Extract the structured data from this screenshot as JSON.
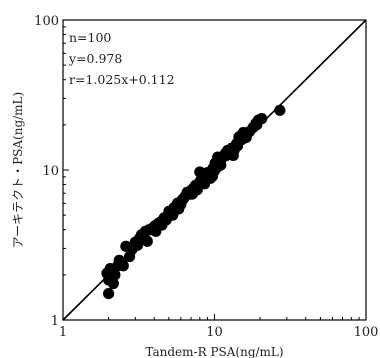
{
  "chart_data": {
    "type": "scatter",
    "xlabel": "Tandem-R PSA(ng/mL)",
    "ylabel": "アーキテクト・PSA(ng/mL)",
    "x_scale": "log",
    "y_scale": "log",
    "xlim": [
      1,
      100
    ],
    "ylim": [
      1,
      100
    ],
    "x_ticks": [
      "1",
      "10",
      "100"
    ],
    "y_ticks": [
      "1",
      "10",
      "100"
    ],
    "annotations": [
      "n=100",
      "y=0.978",
      "r=1.025x+0.112"
    ],
    "reference_line": {
      "from": [
        1,
        1
      ],
      "to": [
        100,
        100
      ]
    },
    "grid": false,
    "colors": {
      "points": "#000000",
      "line": "#000000",
      "axes": "#000000"
    },
    "points": [
      [
        1.95,
        2.05
      ],
      [
        2.0,
        1.85
      ],
      [
        2.05,
        2.2
      ],
      [
        2.1,
        2.0
      ],
      [
        2.0,
        1.5
      ],
      [
        2.15,
        1.75
      ],
      [
        2.1,
        2.15
      ],
      [
        2.3,
        2.3
      ],
      [
        2.35,
        2.5
      ],
      [
        2.4,
        2.45
      ],
      [
        2.6,
        3.1
      ],
      [
        2.75,
        2.65
      ],
      [
        2.85,
        2.95
      ],
      [
        3.0,
        3.3
      ],
      [
        3.1,
        3.15
      ],
      [
        3.3,
        3.7
      ],
      [
        3.4,
        3.45
      ],
      [
        3.5,
        3.9
      ],
      [
        3.6,
        3.35
      ],
      [
        3.7,
        4.0
      ],
      [
        3.9,
        4.1
      ],
      [
        4.1,
        3.9
      ],
      [
        4.25,
        4.4
      ],
      [
        4.5,
        4.3
      ],
      [
        4.65,
        4.8
      ],
      [
        4.8,
        4.65
      ],
      [
        5.0,
        5.3
      ],
      [
        5.15,
        5.0
      ],
      [
        5.4,
        5.6
      ],
      [
        5.6,
        5.45
      ],
      [
        5.8,
        5.5
      ],
      [
        6.0,
        5.9
      ],
      [
        6.2,
        6.4
      ],
      [
        6.35,
        6.6
      ],
      [
        6.5,
        6.8
      ],
      [
        6.6,
        7.1
      ],
      [
        6.8,
        6.9
      ],
      [
        7.0,
        7.3
      ],
      [
        7.1,
        6.9
      ],
      [
        7.3,
        7.6
      ],
      [
        7.5,
        7.9
      ],
      [
        7.7,
        7.4
      ],
      [
        7.9,
        8.2
      ],
      [
        8.1,
        8.5
      ],
      [
        8.3,
        8.7
      ],
      [
        8.5,
        8.3
      ],
      [
        8.7,
        9.0
      ],
      [
        8.9,
        8.8
      ],
      [
        9.0,
        9.6
      ],
      [
        9.2,
        9.2
      ],
      [
        9.4,
        8.8
      ],
      [
        9.6,
        9.9
      ],
      [
        9.8,
        10.3
      ],
      [
        10.0,
        9.9
      ],
      [
        10.2,
        10.7
      ],
      [
        10.4,
        10.4
      ],
      [
        10.6,
        11.2
      ],
      [
        10.9,
        11.5
      ],
      [
        11.2,
        12.0
      ],
      [
        11.5,
        12.4
      ],
      [
        11.8,
        12.9
      ],
      [
        12.2,
        13.5
      ],
      [
        12.6,
        13.0
      ],
      [
        13.0,
        14.0
      ],
      [
        13.5,
        13.6
      ],
      [
        14.0,
        15.0
      ],
      [
        14.5,
        16.6
      ],
      [
        15.0,
        17.0
      ],
      [
        15.5,
        17.8
      ],
      [
        16.2,
        16.5
      ],
      [
        17.0,
        18.0
      ],
      [
        18.0,
        19.2
      ],
      [
        18.8,
        20.5
      ],
      [
        19.5,
        21.5
      ],
      [
        20.5,
        22.0
      ],
      [
        27.0,
        25.0
      ],
      [
        9.1,
        8.9
      ],
      [
        5.3,
        5.0
      ],
      [
        4.05,
        4.25
      ],
      [
        7.2,
        7.0
      ],
      [
        8.0,
        9.7
      ],
      [
        10.1,
        11.1
      ],
      [
        12.0,
        12.5
      ],
      [
        16.0,
        17.3
      ],
      [
        3.2,
        3.5
      ],
      [
        2.5,
        2.3
      ],
      [
        6.1,
        6.3
      ],
      [
        4.4,
        4.5
      ],
      [
        11.0,
        10.8
      ],
      [
        13.3,
        12.5
      ],
      [
        9.7,
        9.1
      ],
      [
        8.6,
        8.1
      ],
      [
        5.7,
        6.0
      ],
      [
        2.2,
        2.0
      ],
      [
        3.8,
        4.0
      ],
      [
        7.8,
        8.0
      ],
      [
        15.2,
        16.0
      ],
      [
        19.0,
        20.0
      ],
      [
        14.2,
        14.5
      ],
      [
        10.5,
        12.2
      ]
    ]
  }
}
